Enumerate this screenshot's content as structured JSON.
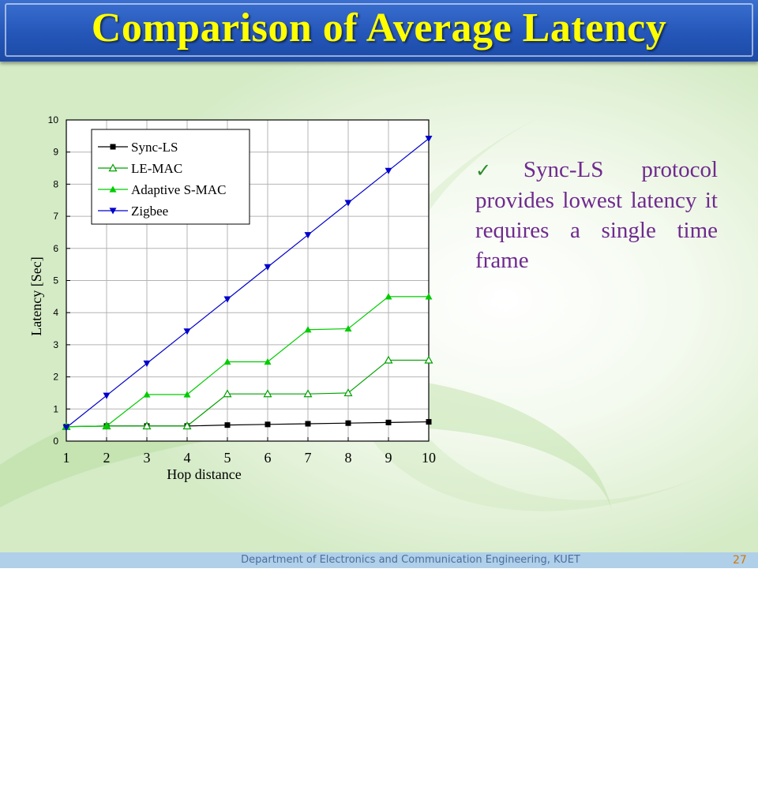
{
  "page_title": "Comparison of Average Latency",
  "bullet_text": "Sync-LS protocol provides lowest latency it requires a single time frame",
  "footer_text": "Department of Electronics and Communication Engineering, KUET",
  "page_number": "27",
  "chart_data": {
    "type": "line",
    "title": "",
    "xlabel": "Hop distance",
    "ylabel": "Latency [Sec]",
    "xlim": [
      1,
      10
    ],
    "ylim": [
      0,
      10
    ],
    "x": [
      1,
      2,
      3,
      4,
      5,
      6,
      7,
      8,
      9,
      10
    ],
    "xticks": [
      "1",
      "2",
      "3",
      "4",
      "5",
      "6",
      "7",
      "8",
      "9",
      "10"
    ],
    "yticks": [
      "0",
      "1",
      "2",
      "3",
      "4",
      "5",
      "6",
      "7",
      "8",
      "9",
      "10"
    ],
    "grid": true,
    "legend_position": "top-left",
    "series": [
      {
        "name": "Sync-LS",
        "marker": "square-filled",
        "color": "#000000",
        "values": [
          0.45,
          0.47,
          0.47,
          0.47,
          0.5,
          0.52,
          0.54,
          0.56,
          0.58,
          0.6
        ]
      },
      {
        "name": "LE-MAC",
        "marker": "triangle-open",
        "color": "#00a000",
        "values": [
          0.45,
          0.47,
          0.47,
          0.47,
          1.47,
          1.47,
          1.47,
          1.5,
          2.52,
          2.52
        ]
      },
      {
        "name": "Adaptive S-MAC",
        "marker": "triangle-filled",
        "color": "#00cc00",
        "values": [
          0.45,
          0.47,
          1.45,
          1.45,
          2.47,
          2.47,
          3.47,
          3.5,
          4.5,
          4.5
        ]
      },
      {
        "name": "Zigbee",
        "marker": "triangle-down-filled",
        "color": "#0000cc",
        "values": [
          0.42,
          1.42,
          2.42,
          3.42,
          4.42,
          5.42,
          6.42,
          7.42,
          8.42,
          9.42
        ]
      }
    ]
  }
}
